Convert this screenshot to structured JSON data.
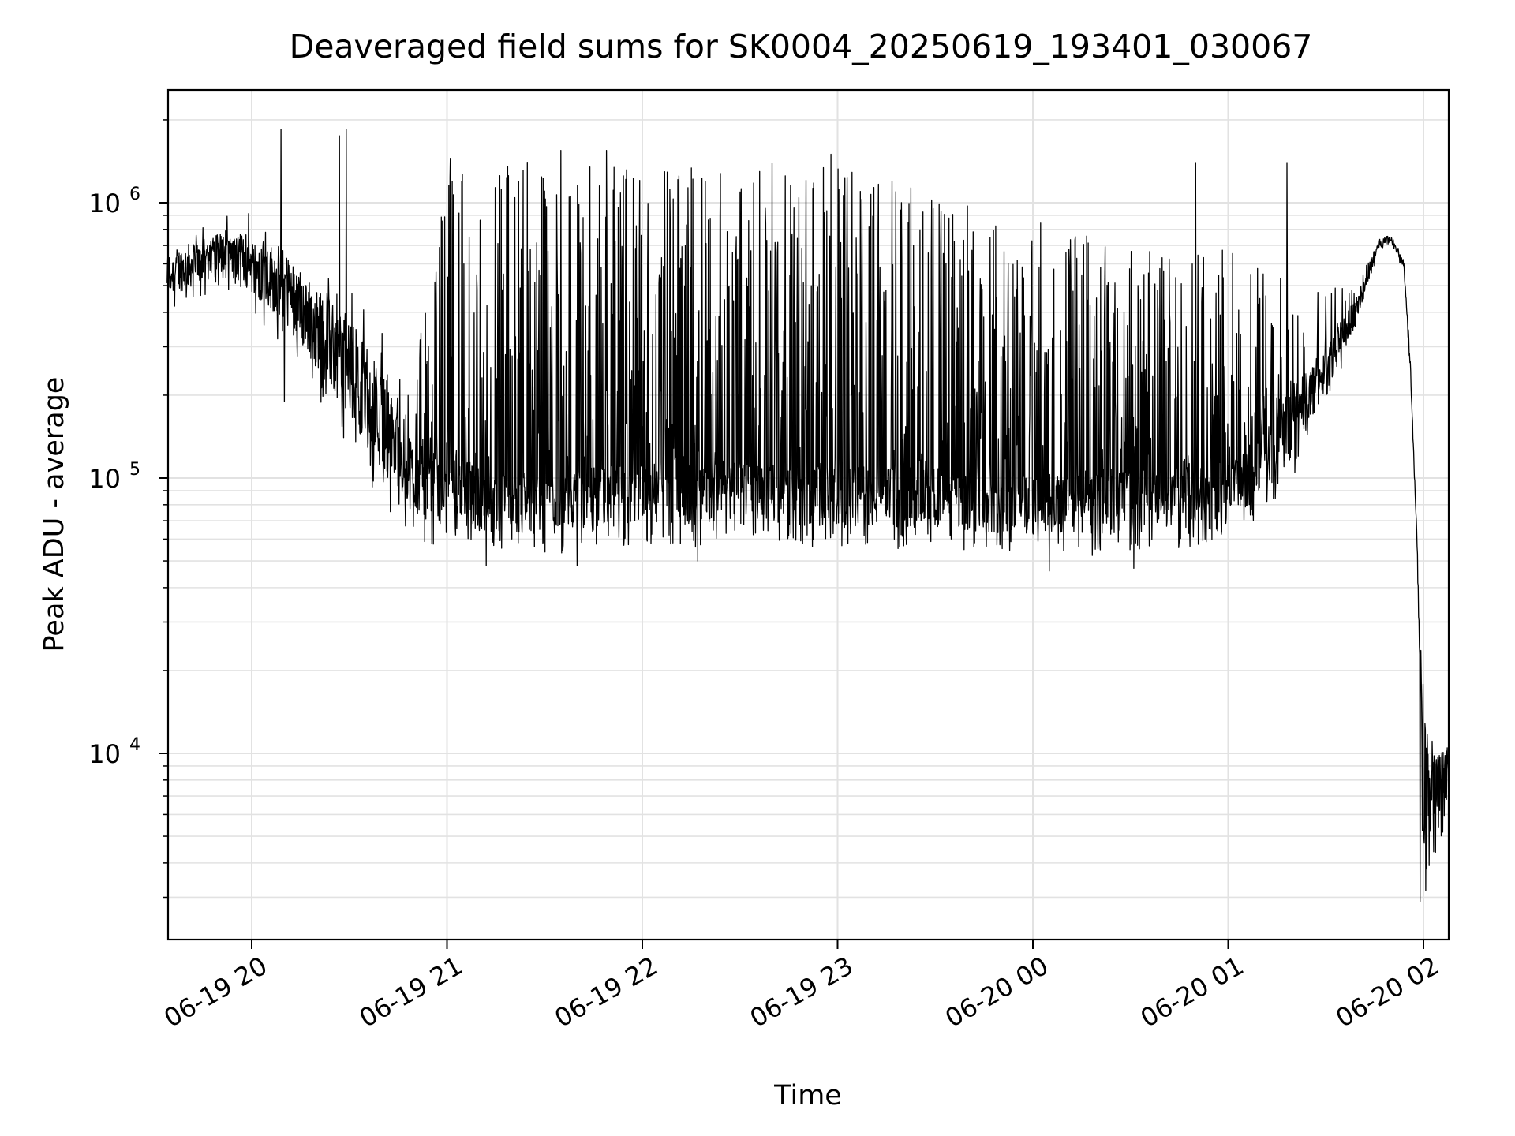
{
  "chart_data": {
    "type": "line",
    "title": "Deaveraged field sums for SK0004_20250619_193401_030067",
    "xlabel": "Time",
    "ylabel": "Peak ADU - average",
    "yscale": "log",
    "ylim": [
      2100,
      2500000
    ],
    "xlim": [
      "06-19 19:34:01",
      "06-20 02:08"
    ],
    "grid": true,
    "x_tick_labels": [
      "06-19 20",
      "06-19 21",
      "06-19 22",
      "06-19 23",
      "06-20 00",
      "06-20 01",
      "06-20 02"
    ],
    "y_tick_labels": [
      {
        "base": "10",
        "exp": "4",
        "value": 10000
      },
      {
        "base": "10",
        "exp": "5",
        "value": 100000
      },
      {
        "base": "10",
        "exp": "6",
        "value": 1000000
      }
    ],
    "series_color": "#000000",
    "envelope": {
      "x": [
        "06-19 19:34",
        "06-19 19:50",
        "06-19 20:00",
        "06-19 20:10",
        "06-19 20:20",
        "06-19 20:30",
        "06-19 20:40",
        "06-19 20:50",
        "06-19 21:00",
        "06-19 21:10",
        "06-19 21:20",
        "06-19 21:30",
        "06-19 21:40",
        "06-19 21:50",
        "06-19 22:00",
        "06-19 22:10",
        "06-19 22:20",
        "06-19 22:30",
        "06-19 22:40",
        "06-19 22:50",
        "06-19 23:00",
        "06-19 23:10",
        "06-19 23:20",
        "06-19 23:30",
        "06-19 23:40",
        "06-19 23:50",
        "06-20 00:00",
        "06-20 00:10",
        "06-20 00:20",
        "06-20 00:30",
        "06-20 00:40",
        "06-20 00:50",
        "06-20 01:00",
        "06-20 01:10",
        "06-20 01:20",
        "06-20 01:30",
        "06-20 01:40",
        "06-20 01:46",
        "06-20 01:50",
        "06-20 01:54",
        "06-20 01:56",
        "06-20 01:58",
        "06-20 02:00",
        "06-20 02:04",
        "06-20 02:08"
      ],
      "baseline": [
        550000,
        650000,
        600000,
        500000,
        350000,
        250000,
        160000,
        100000,
        88000,
        85000,
        80000,
        80000,
        82000,
        85000,
        90000,
        90000,
        90000,
        92000,
        88000,
        86000,
        85000,
        85000,
        86000,
        85000,
        82000,
        80000,
        80000,
        80000,
        82000,
        83000,
        84000,
        85000,
        90000,
        110000,
        160000,
        250000,
        420000,
        700000,
        740000,
        600000,
        250000,
        60000,
        9000,
        7000,
        9000
      ],
      "peaks": [
        650000,
        900000,
        950000,
        800000,
        500000,
        600000,
        350000,
        250000,
        1300000,
        1350000,
        1400000,
        1450000,
        1450000,
        1450000,
        1400000,
        1400000,
        1450000,
        1400000,
        1400000,
        1400000,
        1400000,
        1300000,
        1200000,
        1050000,
        1000000,
        950000,
        900000,
        850000,
        800000,
        750000,
        650000,
        650000,
        700000,
        600000,
        550000,
        500000,
        500000,
        750000,
        760000,
        620000,
        260000,
        65000,
        14000,
        10000,
        12000
      ],
      "dips": [
        400000,
        480000,
        400000,
        300000,
        200000,
        120000,
        80000,
        60000,
        55000,
        52000,
        55000,
        52000,
        52000,
        55000,
        58000,
        56000,
        56000,
        62000,
        58000,
        55000,
        56000,
        55000,
        55000,
        56000,
        54000,
        54000,
        52000,
        52000,
        52000,
        52000,
        54000,
        56000,
        62000,
        70000,
        100000,
        180000,
        350000,
        650000,
        700000,
        560000,
        230000,
        55000,
        3000,
        4000,
        6500
      ]
    },
    "spikes": [
      {
        "x": "06-19 20:09",
        "y": 1850000
      },
      {
        "x": "06-19 20:27",
        "y": 1750000
      },
      {
        "x": "06-19 20:29",
        "y": 1850000
      },
      {
        "x": "06-19 21:01",
        "y": 1450000
      },
      {
        "x": "06-19 21:35",
        "y": 1550000
      },
      {
        "x": "06-19 21:49",
        "y": 1550000
      },
      {
        "x": "06-19 22:58",
        "y": 1500000
      },
      {
        "x": "06-20 00:50",
        "y": 1400000
      },
      {
        "x": "06-20 01:18",
        "y": 1400000
      }
    ],
    "drops": [
      {
        "x": "06-19 20:10",
        "y": 190000
      },
      {
        "x": "06-19 21:12",
        "y": 48000
      },
      {
        "x": "06-19 21:40",
        "y": 48000
      },
      {
        "x": "06-19 22:17",
        "y": 50000
      },
      {
        "x": "06-20 00:05",
        "y": 46000
      },
      {
        "x": "06-20 00:31",
        "y": 47000
      },
      {
        "x": "06-20 01:59",
        "y": 2900
      },
      {
        "x": "06-20 02:01",
        "y": 3800
      }
    ]
  }
}
